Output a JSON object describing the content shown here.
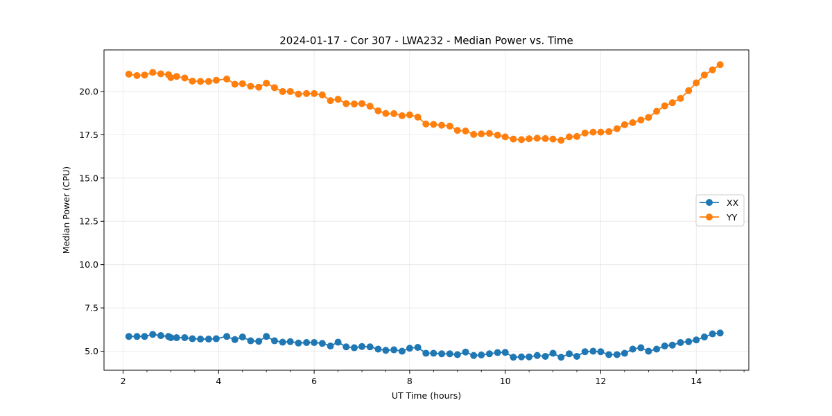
{
  "chart_data": {
    "type": "line",
    "title": "2024-01-17 - Cor 307 - LWA232 - Median Power vs. Time",
    "xlabel": "UT Time (hours)",
    "ylabel": "Median Power (CPU)",
    "xlim": [
      1.6,
      15.1
    ],
    "ylim": [
      3.9,
      22.4
    ],
    "xticks": [
      2,
      4,
      6,
      8,
      10,
      12,
      14
    ],
    "xtick_labels": [
      "2",
      "4",
      "6",
      "8",
      "10",
      "12",
      "14"
    ],
    "yticks": [
      5.0,
      7.5,
      10.0,
      12.5,
      15.0,
      17.5,
      20.0
    ],
    "ytick_labels": [
      "5.0",
      "7.5",
      "10.0",
      "12.5",
      "15.0",
      "17.5",
      "20.0"
    ],
    "grid": true,
    "legend_position": "center-right",
    "series": [
      {
        "name": "XX",
        "color": "#1f77b4",
        "x": [
          2.12,
          2.29,
          2.45,
          2.62,
          2.79,
          2.95,
          3.0,
          3.12,
          3.29,
          3.45,
          3.62,
          3.79,
          3.95,
          4.17,
          4.34,
          4.5,
          4.67,
          4.84,
          5.0,
          5.17,
          5.34,
          5.5,
          5.67,
          5.84,
          6.0,
          6.17,
          6.34,
          6.5,
          6.67,
          6.84,
          7.0,
          7.17,
          7.34,
          7.5,
          7.67,
          7.84,
          8.0,
          8.17,
          8.34,
          8.5,
          8.67,
          8.84,
          9.0,
          9.17,
          9.34,
          9.5,
          9.67,
          9.84,
          10.0,
          10.17,
          10.34,
          10.5,
          10.67,
          10.84,
          11.0,
          11.17,
          11.34,
          11.5,
          11.67,
          11.84,
          12.0,
          12.17,
          12.34,
          12.5,
          12.67,
          12.84,
          13.0,
          13.17,
          13.34,
          13.5,
          13.67,
          13.84,
          14.0,
          14.17,
          14.34,
          14.5
        ],
        "values": [
          5.85,
          5.85,
          5.85,
          5.97,
          5.9,
          5.85,
          5.78,
          5.78,
          5.78,
          5.72,
          5.7,
          5.7,
          5.72,
          5.85,
          5.67,
          5.82,
          5.6,
          5.57,
          5.85,
          5.6,
          5.52,
          5.55,
          5.47,
          5.5,
          5.5,
          5.45,
          5.3,
          5.52,
          5.25,
          5.2,
          5.27,
          5.25,
          5.12,
          5.05,
          5.08,
          5.0,
          5.17,
          5.22,
          4.88,
          4.88,
          4.85,
          4.85,
          4.8,
          4.95,
          4.75,
          4.78,
          4.85,
          4.92,
          4.93,
          4.65,
          4.67,
          4.67,
          4.75,
          4.7,
          4.88,
          4.65,
          4.85,
          4.7,
          4.97,
          5.0,
          4.97,
          4.8,
          4.8,
          4.88,
          5.12,
          5.2,
          5.0,
          5.12,
          5.3,
          5.35,
          5.5,
          5.55,
          5.65,
          5.82,
          6.0,
          6.05
        ]
      },
      {
        "name": "YY",
        "color": "#ff7f0e",
        "x": [
          2.12,
          2.29,
          2.45,
          2.62,
          2.79,
          2.95,
          3.0,
          3.12,
          3.29,
          3.45,
          3.62,
          3.79,
          3.95,
          4.17,
          4.34,
          4.5,
          4.67,
          4.84,
          5.0,
          5.17,
          5.34,
          5.5,
          5.67,
          5.84,
          6.0,
          6.17,
          6.34,
          6.5,
          6.67,
          6.84,
          7.0,
          7.17,
          7.34,
          7.5,
          7.67,
          7.84,
          8.0,
          8.17,
          8.34,
          8.5,
          8.67,
          8.84,
          9.0,
          9.17,
          9.34,
          9.5,
          9.67,
          9.84,
          10.0,
          10.17,
          10.34,
          10.5,
          10.67,
          10.84,
          11.0,
          11.17,
          11.34,
          11.5,
          11.67,
          11.84,
          12.0,
          12.17,
          12.34,
          12.5,
          12.67,
          12.84,
          13.0,
          13.17,
          13.34,
          13.5,
          13.67,
          13.84,
          14.0,
          14.17,
          14.34,
          14.5
        ],
        "values": [
          21.0,
          20.92,
          20.95,
          21.1,
          21.02,
          20.97,
          20.8,
          20.87,
          20.78,
          20.6,
          20.58,
          20.58,
          20.65,
          20.72,
          20.42,
          20.45,
          20.3,
          20.25,
          20.48,
          20.22,
          20.0,
          20.0,
          19.85,
          19.88,
          19.88,
          19.8,
          19.47,
          19.55,
          19.3,
          19.28,
          19.3,
          19.15,
          18.88,
          18.73,
          18.72,
          18.6,
          18.65,
          18.52,
          18.12,
          18.1,
          18.05,
          18.0,
          17.75,
          17.72,
          17.52,
          17.55,
          17.58,
          17.48,
          17.38,
          17.25,
          17.22,
          17.27,
          17.3,
          17.28,
          17.25,
          17.18,
          17.38,
          17.4,
          17.6,
          17.65,
          17.65,
          17.68,
          17.85,
          18.08,
          18.2,
          18.35,
          18.5,
          18.85,
          19.17,
          19.35,
          19.6,
          20.05,
          20.5,
          20.95,
          21.25,
          21.55
        ]
      }
    ]
  }
}
